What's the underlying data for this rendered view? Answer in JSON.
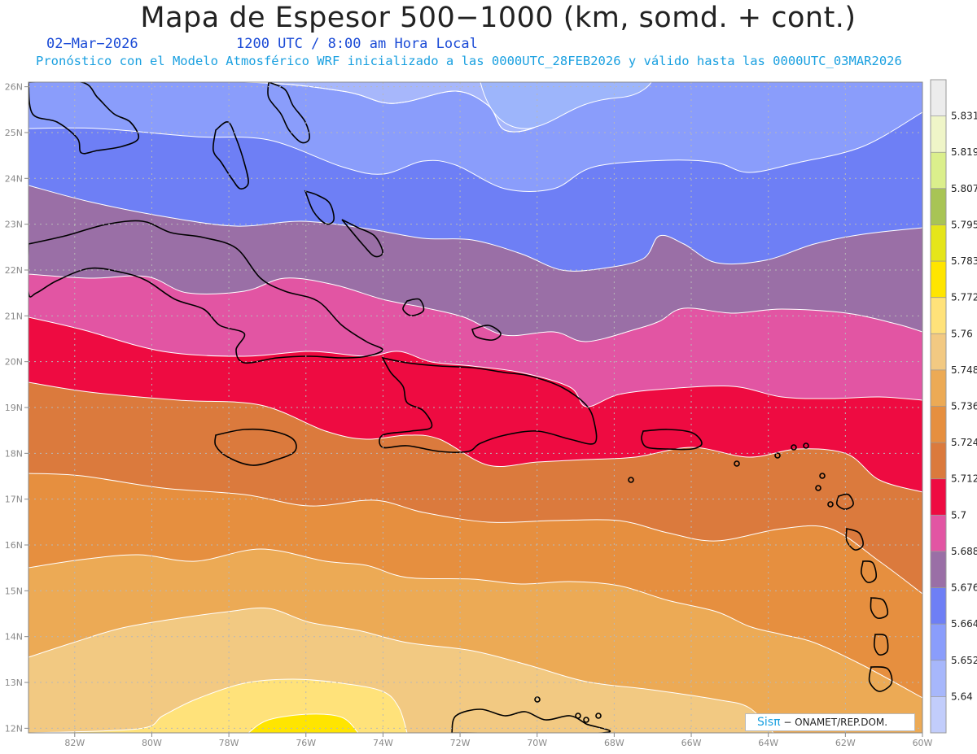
{
  "header": {
    "title": "Mapa de Espesor 500−1000 (km, somd. + cont.)",
    "date": "02−Mar−2026",
    "time": "1200 UTC / 8:00 am Hora Local",
    "subtitle": "Pronóstico con el Modelo Atmosférico WRF inicializado a las 0000UTC_28FEB2026 y válido hasta las  0000UTC_03MAR2026"
  },
  "map": {
    "lon_range": [
      -83.2,
      -60
    ],
    "lat_range": [
      11.9,
      26.1
    ],
    "lon_ticks": [
      "82W",
      "80W",
      "78W",
      "76W",
      "74W",
      "72W",
      "70W",
      "68W",
      "66W",
      "64W",
      "62W",
      "60W"
    ],
    "lat_ticks": [
      "12N",
      "13N",
      "14N",
      "15N",
      "16N",
      "17N",
      "18N",
      "19N",
      "20N",
      "21N",
      "22N",
      "23N",
      "24N",
      "25N",
      "26N"
    ],
    "contour_color": "#ffffff",
    "gridline_color": "#b8b8b8"
  },
  "colorbar": {
    "labels": [
      "5.64",
      "5.652",
      "5.664",
      "5.676",
      "5.688",
      "5.7",
      "5.712",
      "5.724",
      "5.736",
      "5.748",
      "5.76",
      "5.772",
      "5.783",
      "5.795",
      "5.807",
      "5.819",
      "5.831"
    ],
    "colors": [
      "#c2cdfb",
      "#a7b7fb",
      "#8a9dfb",
      "#6e7ff5",
      "#9a6fa6",
      "#e255a3",
      "#ee0b41",
      "#db7a3d",
      "#e68f3f",
      "#ecaa55",
      "#f2c982",
      "#ffe27a",
      "#ffe500",
      "#e5e51a",
      "#a8c455",
      "#dbef8c",
      "#eff5c8",
      "#ececec"
    ]
  },
  "credit": {
    "brand": "Sisπ",
    "text": " − ONAMET/REP.DOM."
  }
}
